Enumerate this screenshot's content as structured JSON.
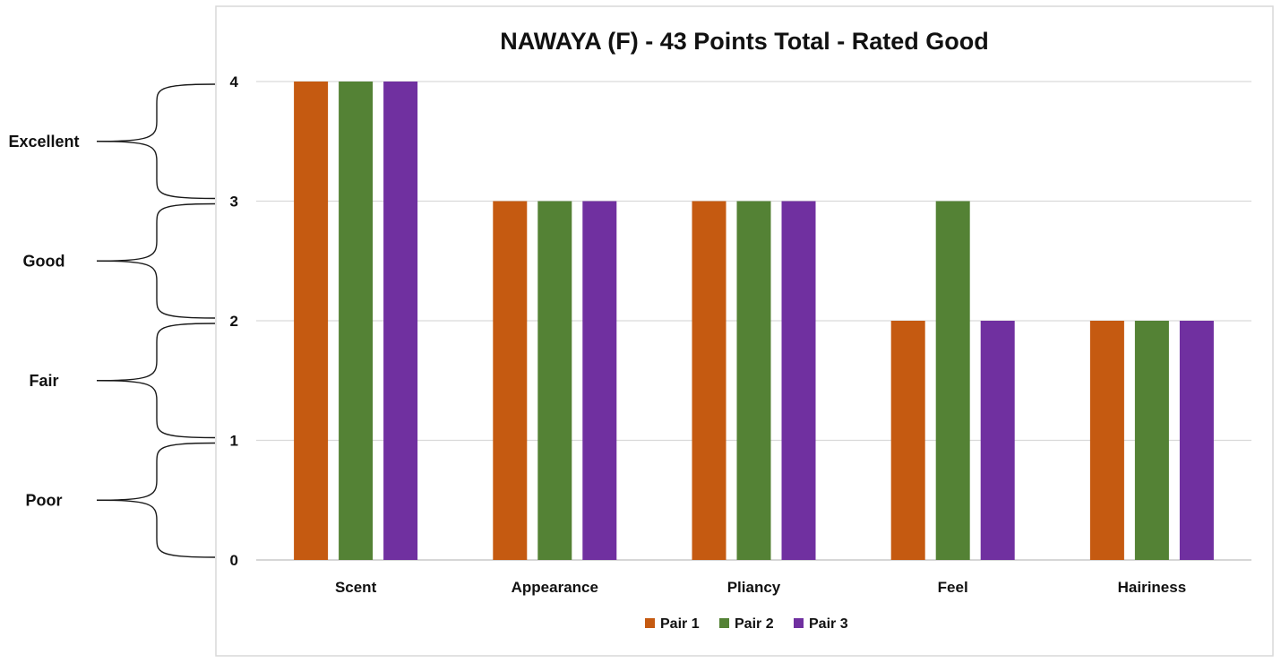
{
  "chart_data": {
    "type": "bar",
    "title": "NAWAYA (F) -  43 Points Total - Rated Good",
    "categories": [
      "Scent",
      "Appearance",
      "Pliancy",
      "Feel",
      "Hairiness"
    ],
    "series": [
      {
        "name": "Pair 1",
        "color": "#c55a11",
        "values": [
          4,
          3,
          3,
          2,
          2
        ]
      },
      {
        "name": "Pair 2",
        "color": "#548235",
        "values": [
          4,
          3,
          3,
          3,
          2
        ]
      },
      {
        "name": "Pair 3",
        "color": "#7030a0",
        "values": [
          4,
          3,
          3,
          2,
          2
        ]
      }
    ],
    "ylim": [
      0,
      4
    ],
    "yticks": [
      "0",
      "1",
      "2",
      "3",
      "4"
    ],
    "grid": true,
    "legend_position": "bottom",
    "rating_bands": [
      {
        "label": "Excellent",
        "from": 3,
        "to": 4
      },
      {
        "label": "Good",
        "from": 2,
        "to": 3
      },
      {
        "label": "Fair",
        "from": 1,
        "to": 2
      },
      {
        "label": "Poor",
        "from": 0,
        "to": 1
      }
    ]
  }
}
